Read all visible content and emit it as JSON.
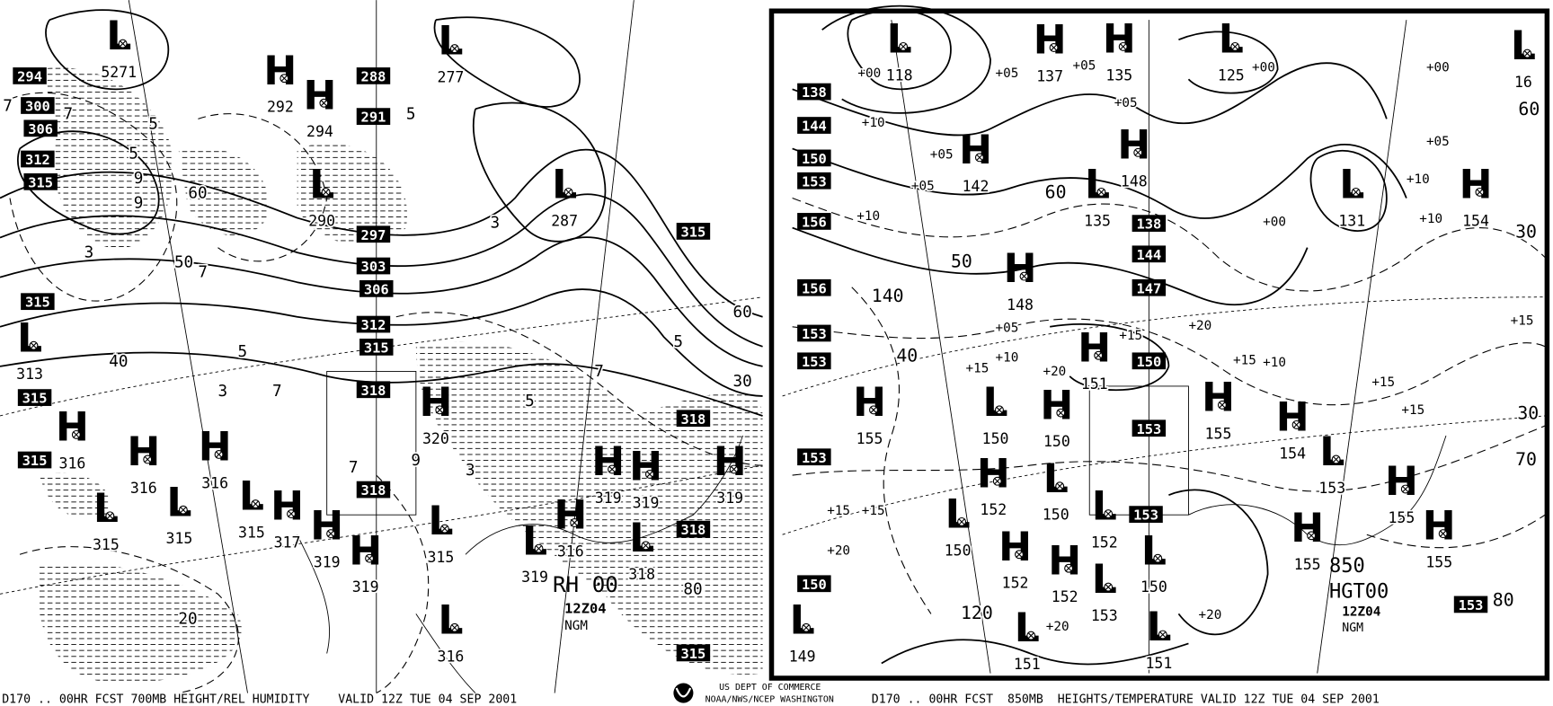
{
  "colors": {
    "ink": "#000000",
    "background": "#ffffff"
  },
  "left_panel": {
    "product": "RH 00",
    "time": "12Z04",
    "model": "NGM",
    "boxed_heights": [
      "294",
      "300",
      "306",
      "312",
      "315",
      "288",
      "291",
      "297",
      "303",
      "306",
      "312",
      "315",
      "318",
      "318",
      "315",
      "315",
      "315",
      "315",
      "318",
      "318",
      "315"
    ],
    "centers": [
      {
        "type": "L",
        "value": "5271"
      },
      {
        "type": "H",
        "value": "292"
      },
      {
        "type": "H",
        "value": "294"
      },
      {
        "type": "L",
        "value": "277"
      },
      {
        "type": "L",
        "value": "290"
      },
      {
        "type": "L",
        "value": "287"
      },
      {
        "type": "L",
        "value": "313"
      },
      {
        "type": "H",
        "value": "320"
      },
      {
        "type": "H",
        "value": "316"
      },
      {
        "type": "H",
        "value": "316"
      },
      {
        "type": "H",
        "value": "316"
      },
      {
        "type": "L",
        "value": "315"
      },
      {
        "type": "L",
        "value": "315"
      },
      {
        "type": "L",
        "value": "315"
      },
      {
        "type": "H",
        "value": "317"
      },
      {
        "type": "H",
        "value": "319"
      },
      {
        "type": "H",
        "value": "319"
      },
      {
        "type": "L",
        "value": "315"
      },
      {
        "type": "H",
        "value": "319"
      },
      {
        "type": "L",
        "value": "318"
      },
      {
        "type": "H",
        "value": "319"
      },
      {
        "type": "L",
        "value": "319"
      },
      {
        "type": "H",
        "value": "316"
      },
      {
        "type": "H",
        "value": "319"
      },
      {
        "type": "L",
        "value": "316"
      }
    ],
    "contour_labels": [
      "7",
      "7",
      "5",
      "5",
      "9",
      "9",
      "3",
      "3",
      "5",
      "7",
      "5",
      "3",
      "7",
      "5",
      "9",
      "7",
      "3",
      "5",
      "7",
      "80",
      "20",
      "60",
      "50",
      "40",
      "30",
      "60"
    ]
  },
  "right_panel": {
    "level": "850",
    "product": "HGT00",
    "time": "12Z04",
    "model": "NGM",
    "boxed_heights": [
      "138",
      "144",
      "150",
      "153",
      "156",
      "156",
      "153",
      "153",
      "153",
      "150",
      "138",
      "144",
      "147",
      "150",
      "153",
      "153",
      "153"
    ],
    "centers": [
      {
        "type": "L",
        "value": "118"
      },
      {
        "type": "H",
        "value": "137"
      },
      {
        "type": "H",
        "value": "135"
      },
      {
        "type": "L",
        "value": "125"
      },
      {
        "type": "L",
        "value": "16"
      },
      {
        "type": "H",
        "value": "142"
      },
      {
        "type": "H",
        "value": "148"
      },
      {
        "type": "L",
        "value": "135"
      },
      {
        "type": "L",
        "value": "131"
      },
      {
        "type": "H",
        "value": "154"
      },
      {
        "type": "H",
        "value": "148"
      },
      {
        "type": "H",
        "value": "155"
      },
      {
        "type": "H",
        "value": "151"
      },
      {
        "type": "L",
        "value": "150"
      },
      {
        "type": "H",
        "value": "150"
      },
      {
        "type": "H",
        "value": "155"
      },
      {
        "type": "H",
        "value": "154"
      },
      {
        "type": "L",
        "value": "153"
      },
      {
        "type": "H",
        "value": "152"
      },
      {
        "type": "L",
        "value": "150"
      },
      {
        "type": "L",
        "value": "150"
      },
      {
        "type": "H",
        "value": "152"
      },
      {
        "type": "L",
        "value": "152"
      },
      {
        "type": "H",
        "value": "152"
      },
      {
        "type": "L",
        "value": "153"
      },
      {
        "type": "L",
        "value": "150"
      },
      {
        "type": "L",
        "value": "151"
      },
      {
        "type": "L",
        "value": "151"
      },
      {
        "type": "H",
        "value": "155"
      },
      {
        "type": "H",
        "value": "155"
      },
      {
        "type": "H",
        "value": "155"
      },
      {
        "type": "L",
        "value": "149"
      }
    ],
    "temp_labels": [
      "+00",
      "+05",
      "+05",
      "+10",
      "+05",
      "+05",
      "+05",
      "+00",
      "+00",
      "+05",
      "+10",
      "+10",
      "+00",
      "+10",
      "+15",
      "+10",
      "+05",
      "+15",
      "+20",
      "+15",
      "+10",
      "+15",
      "+20",
      "+15",
      "+15",
      "+15",
      "+15",
      "+20",
      "+20",
      "+20"
    ],
    "contour_labels": [
      "60",
      "50",
      "40",
      "140",
      "120",
      "30",
      "70",
      "60",
      "30",
      "80"
    ]
  },
  "footer": {
    "left_caption": "D170 .. 00HR FCST 700MB HEIGHT/REL HUMIDITY    VALID 12Z TUE 04 SEP 2001",
    "agency_line1": "US DEPT OF COMMERCE",
    "agency_line2": "NOAA/NWS/NCEP WASHINGTON",
    "right_caption": "D170 .. 00HR FCST  850MB  HEIGHTS/TEMPERATURE VALID 12Z TUE 04 SEP 2001"
  }
}
